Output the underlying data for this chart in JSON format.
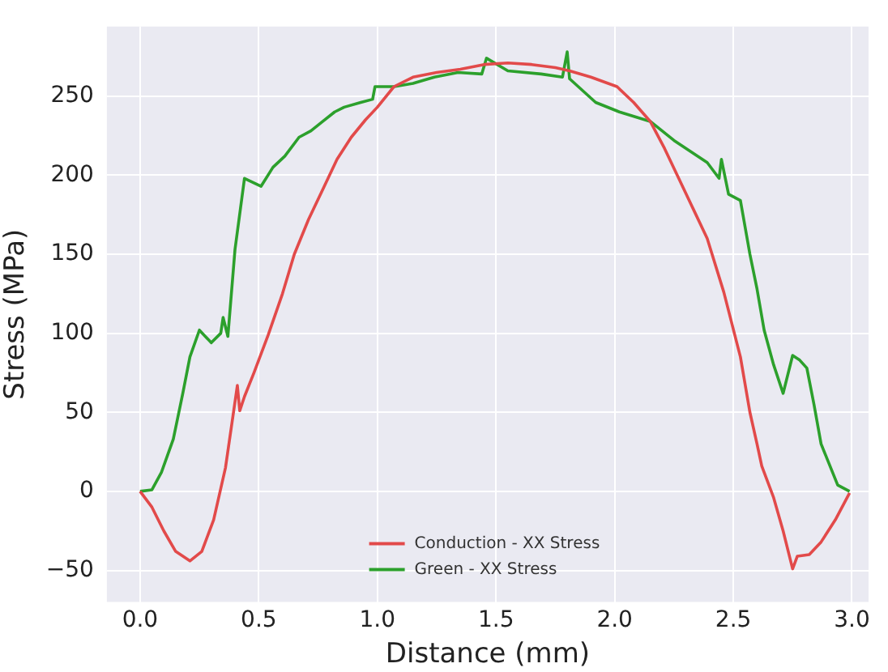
{
  "chart_data": {
    "type": "line",
    "xlabel": "Distance (mm)",
    "ylabel": "Stress (MPa)",
    "xlim": [
      -0.14,
      3.07
    ],
    "xticks": [
      {
        "value": 0,
        "label": "0.0"
      },
      {
        "value": 0.5,
        "label": "0.5"
      },
      {
        "value": 1,
        "label": "1.0"
      },
      {
        "value": 1.5,
        "label": "1.5"
      },
      {
        "value": 2,
        "label": "2.0"
      },
      {
        "value": 2.5,
        "label": "2.5"
      },
      {
        "value": 3,
        "label": "3.0"
      }
    ],
    "ylim": [
      -70,
      294
    ],
    "yticks": [
      {
        "value": -50,
        "label": "−50"
      },
      0,
      50,
      100,
      150,
      200,
      250
    ],
    "grid": true,
    "legend": "bottom",
    "marker": "none",
    "line_style": "solid",
    "series": [
      {
        "name": "Conduction - XX Stress",
        "color": "#e24a4a",
        "x": [
          0,
          0.05,
          0.1,
          0.15,
          0.21,
          0.26,
          0.31,
          0.36,
          0.41,
          0.42,
          0.44,
          0.48,
          0.54,
          0.6,
          0.65,
          0.71,
          0.77,
          0.83,
          0.89,
          0.95,
          1.0,
          1.07,
          1.15,
          1.25,
          1.35,
          1.45,
          1.55,
          1.65,
          1.75,
          1.81,
          1.9,
          2.01,
          2.08,
          2.15,
          2.21,
          2.27,
          2.33,
          2.39,
          2.46,
          2.53,
          2.57,
          2.6,
          2.62,
          2.67,
          2.71,
          2.75,
          2.77,
          2.82,
          2.87,
          2.93,
          2.99
        ],
        "values": [
          0,
          -10,
          -25,
          -38,
          -44,
          -38,
          -18,
          15,
          67,
          51,
          60,
          75,
          99,
          125,
          150,
          172,
          191,
          210,
          224,
          235,
          243,
          256,
          262,
          265,
          267,
          270,
          271,
          270,
          268,
          266,
          262,
          256,
          246,
          234,
          217,
          198,
          179,
          160,
          126,
          85,
          50,
          30,
          16,
          -4,
          -25,
          -49,
          -41,
          -40,
          -32,
          -18,
          -1
        ]
      },
      {
        "name": "Green - XX Stress",
        "color": "#2ca02c",
        "x": [
          0,
          0.05,
          0.09,
          0.14,
          0.18,
          0.21,
          0.25,
          0.3,
          0.34,
          0.35,
          0.37,
          0.4,
          0.44,
          0.51,
          0.56,
          0.61,
          0.67,
          0.72,
          0.77,
          0.82,
          0.86,
          0.93,
          0.98,
          0.99,
          1.07,
          1.15,
          1.24,
          1.34,
          1.44,
          1.46,
          1.55,
          1.69,
          1.78,
          1.8,
          1.81,
          1.92,
          2.02,
          2.15,
          2.25,
          2.39,
          2.44,
          2.45,
          2.48,
          2.53,
          2.57,
          2.6,
          2.63,
          2.67,
          2.71,
          2.75,
          2.78,
          2.81,
          2.84,
          2.87,
          2.94,
          2.99
        ],
        "values": [
          0,
          1,
          12,
          33,
          62,
          85,
          102,
          94,
          100,
          110,
          98,
          153,
          198,
          193,
          205,
          212,
          224,
          228,
          234,
          240,
          243,
          246,
          248,
          256,
          256,
          258,
          262,
          265,
          264,
          274,
          266,
          264,
          262,
          278,
          261,
          246,
          240,
          234,
          222,
          208,
          198,
          210,
          188,
          184,
          150,
          128,
          102,
          80,
          62,
          86,
          83,
          78,
          55,
          30,
          4,
          0
        ]
      }
    ]
  }
}
